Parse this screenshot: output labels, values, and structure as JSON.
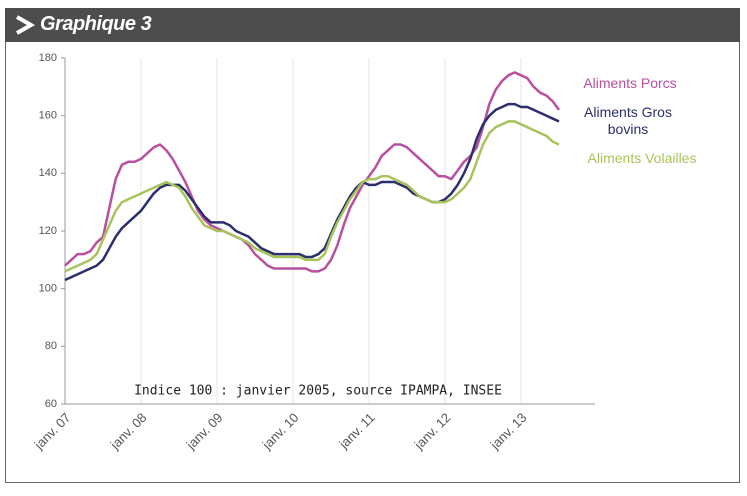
{
  "chart_data": {
    "type": "line",
    "title": "Graphique 3",
    "annotation": "Indice 100 : janvier 2005, source IPAMPA, INSEE",
    "categories": [
      "janv. 07",
      null,
      null,
      null,
      null,
      null,
      null,
      null,
      null,
      null,
      null,
      null,
      "janv. 08",
      null,
      null,
      null,
      null,
      null,
      null,
      null,
      null,
      null,
      null,
      null,
      "janv. 09",
      null,
      null,
      null,
      null,
      null,
      null,
      null,
      null,
      null,
      null,
      null,
      "janv. 10",
      null,
      null,
      null,
      null,
      null,
      null,
      null,
      null,
      null,
      null,
      null,
      "janv. 11",
      null,
      null,
      null,
      null,
      null,
      null,
      null,
      null,
      null,
      null,
      null,
      "janv. 12",
      null,
      null,
      null,
      null,
      null,
      null,
      null,
      null,
      null,
      null,
      null,
      "janv. 13",
      null,
      null,
      null,
      null,
      null,
      null
    ],
    "series": [
      {
        "name": "Aliments Porcs",
        "color": "#b9509f",
        "values": [
          108,
          110,
          112,
          112,
          113,
          116,
          118,
          128,
          138,
          143,
          144,
          144,
          145,
          147,
          149,
          150,
          148,
          145,
          141,
          137,
          132,
          127,
          124,
          122,
          121,
          120,
          119,
          118,
          117,
          115,
          112,
          110,
          108,
          107,
          107,
          107,
          107,
          107,
          107,
          106,
          106,
          107,
          110,
          115,
          122,
          128,
          132,
          136,
          139,
          142,
          146,
          148,
          150,
          150,
          149,
          147,
          145,
          143,
          141,
          139,
          139,
          138,
          141,
          144,
          146,
          149,
          156,
          164,
          169,
          172,
          174,
          175,
          174,
          173,
          170,
          168,
          167,
          165,
          162
        ]
      },
      {
        "name": "Aliments Gros bovins",
        "color": "#2b2f6b",
        "values": [
          103,
          104,
          105,
          106,
          107,
          108,
          110,
          114,
          118,
          121,
          123,
          125,
          127,
          130,
          133,
          135,
          136,
          136,
          136,
          134,
          131,
          128,
          125,
          123,
          123,
          123,
          122,
          120,
          119,
          118,
          116,
          114,
          113,
          112,
          112,
          112,
          112,
          112,
          111,
          111,
          112,
          114,
          119,
          124,
          128,
          132,
          135,
          137,
          136,
          136,
          137,
          137,
          137,
          136,
          135,
          133,
          132,
          131,
          130,
          130,
          131,
          133,
          136,
          140,
          145,
          152,
          157,
          160,
          162,
          163,
          164,
          164,
          163,
          163,
          162,
          161,
          160,
          159,
          158
        ]
      },
      {
        "name": "Aliments Volailles",
        "color": "#a8c35a",
        "values": [
          106,
          107,
          108,
          109,
          110,
          112,
          117,
          122,
          127,
          130,
          131,
          132,
          133,
          134,
          135,
          136,
          137,
          136,
          135,
          132,
          128,
          125,
          122,
          121,
          120,
          120,
          119,
          118,
          117,
          116,
          114,
          113,
          112,
          111,
          111,
          111,
          111,
          111,
          110,
          110,
          110,
          112,
          118,
          123,
          127,
          131,
          134,
          137,
          138,
          138,
          139,
          139,
          138,
          137,
          136,
          134,
          132,
          131,
          130,
          130,
          130,
          131,
          133,
          135,
          138,
          144,
          150,
          154,
          156,
          157,
          158,
          158,
          157,
          156,
          155,
          154,
          153,
          151,
          150
        ]
      }
    ],
    "ylim": [
      60,
      180
    ],
    "yticks": [
      60,
      80,
      100,
      120,
      140,
      160,
      180
    ],
    "grid": "x"
  }
}
